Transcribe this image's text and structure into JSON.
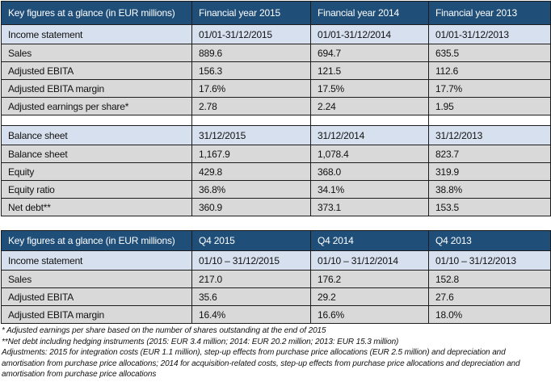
{
  "colors": {
    "header_bg": "#1F4E79",
    "header_text": "#FFFFFF",
    "subheader_row_bg": "#D7E0EE",
    "data_row_bg": "#D9D9D9",
    "border": "#1C1C1C"
  },
  "table1": {
    "headers": [
      "Key figures at a glance (in EUR millions)",
      "Financial year 2015",
      "Financial year 2014",
      "Financial year 2013"
    ],
    "rows": [
      {
        "c0": "Income statement",
        "c1": "01/01-31/12/2015",
        "c2": "01/01-31/12/2014",
        "c3": "01/01-31/12/2013"
      },
      {
        "c0": "Sales",
        "c1": "889.6",
        "c2": "694.7",
        "c3": "635.5"
      },
      {
        "c0": "Adjusted EBITA",
        "c1": "156.3",
        "c2": "121.5",
        "c3": "112.6"
      },
      {
        "c0": "Adjusted EBITA margin",
        "c1": "17.6%",
        "c2": "17.5%",
        "c3": "17.7%"
      },
      {
        "c0": "Adjusted earnings per share*",
        "c1": "2.78",
        "c2": "2.24",
        "c3": "1.95"
      },
      {
        "c0": "Balance sheet",
        "c1": "31/12/2015",
        "c2": "31/12/2014",
        "c3": "31/12/2013"
      },
      {
        "c0": "Balance sheet",
        "c1": "1,167.9",
        "c2": "1,078.4",
        "c3": "823.7"
      },
      {
        "c0": "Equity",
        "c1": "429.8",
        "c2": "368.0",
        "c3": "319.9"
      },
      {
        "c0": "Equity ratio",
        "c1": "36.8%",
        "c2": "34.1%",
        "c3": "38.8%"
      },
      {
        "c0": "Net debt**",
        "c1": "360.9",
        "c2": "373.1",
        "c3": "153.5"
      }
    ]
  },
  "table2": {
    "headers": [
      "Key figures at a glance (in EUR millions)",
      "Q4 2015",
      "Q4 2014",
      "Q4 2013"
    ],
    "rows": [
      {
        "c0": "Income statement",
        "c1": "01/10 – 31/12/2015",
        "c2": "01/10 – 31/12/2014",
        "c3": "01/10 – 31/12/2013"
      },
      {
        "c0": "Sales",
        "c1": "217.0",
        "c2": "176.2",
        "c3": "152.8"
      },
      {
        "c0": "Adjusted EBITA",
        "c1": "35.6",
        "c2": "29.2",
        "c3": "27.6"
      },
      {
        "c0": "Adjusted EBITA margin",
        "c1": "16.4%",
        "c2": "16.6%",
        "c3": "18.0%"
      }
    ]
  },
  "footnotes": [
    "*  Adjusted earnings per share based on the number of shares outstanding at the end of 2015",
    "**Net debt including hedging instruments (2015: EUR 3.4 million; 2014: EUR 20.2 million; 2013: EUR 15.3 million)",
    "Adjustments: 2015 for integration costs (EUR 1.1 million), step-up effects from purchase price allocations (EUR 2.5 million) and depreciation and amortisation from purchase price allocations; 2014 for acquisition-related costs, step-up effects from purchase price allocations and depreciation and amortisation from purchase price allocations"
  ]
}
